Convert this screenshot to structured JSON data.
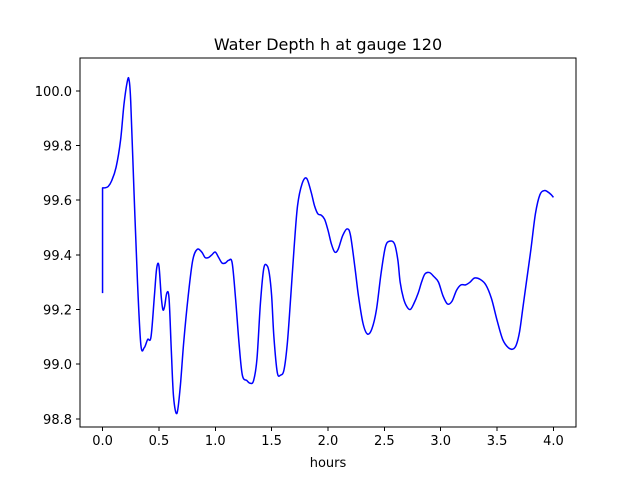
{
  "chart_data": {
    "type": "line",
    "title": "Water Depth h at gauge 120",
    "xlabel": "hours",
    "ylabel": "",
    "xlim": [
      -0.2,
      4.2
    ],
    "ylim": [
      98.77,
      100.12
    ],
    "xticks": [
      0.0,
      0.5,
      1.0,
      1.5,
      2.0,
      2.5,
      3.0,
      3.5,
      4.0
    ],
    "xtick_labels": [
      "0.0",
      "0.5",
      "1.0",
      "1.5",
      "2.0",
      "2.5",
      "3.0",
      "3.5",
      "4.0"
    ],
    "yticks": [
      98.8,
      99.0,
      99.2,
      99.4,
      99.6,
      99.8,
      100.0
    ],
    "ytick_labels": [
      "98.8",
      "99.0",
      "99.2",
      "99.4",
      "99.6",
      "99.8",
      "100.0"
    ],
    "grid": false,
    "series": [
      {
        "name": "",
        "color": "#0000ff",
        "x": [
          0.0,
          0.0,
          0.02,
          0.05,
          0.08,
          0.12,
          0.16,
          0.19,
          0.22,
          0.235,
          0.25,
          0.28,
          0.31,
          0.34,
          0.37,
          0.4,
          0.43,
          0.46,
          0.48,
          0.5,
          0.52,
          0.535,
          0.55,
          0.57,
          0.59,
          0.61,
          0.63,
          0.66,
          0.69,
          0.72,
          0.76,
          0.8,
          0.84,
          0.88,
          0.91,
          0.94,
          0.97,
          1.0,
          1.03,
          1.06,
          1.09,
          1.12,
          1.15,
          1.18,
          1.21,
          1.24,
          1.28,
          1.31,
          1.34,
          1.37,
          1.4,
          1.43,
          1.46,
          1.48,
          1.5,
          1.52,
          1.55,
          1.58,
          1.61,
          1.64,
          1.67,
          1.7,
          1.73,
          1.77,
          1.81,
          1.85,
          1.88,
          1.91,
          1.94,
          1.97,
          2.0,
          2.03,
          2.06,
          2.09,
          2.13,
          2.17,
          2.2,
          2.24,
          2.27,
          2.31,
          2.35,
          2.39,
          2.43,
          2.47,
          2.51,
          2.55,
          2.59,
          2.62,
          2.64,
          2.67,
          2.7,
          2.73,
          2.76,
          2.8,
          2.83,
          2.86,
          2.9,
          2.94,
          2.98,
          3.02,
          3.06,
          3.1,
          3.14,
          3.18,
          3.22,
          3.26,
          3.3,
          3.35,
          3.4,
          3.45,
          3.5,
          3.55,
          3.6,
          3.64,
          3.67,
          3.7,
          3.73,
          3.76,
          3.8,
          3.84,
          3.88,
          3.92,
          3.95,
          3.98,
          4.0
        ],
        "y": [
          99.26,
          99.645,
          99.645,
          99.65,
          99.67,
          99.72,
          99.82,
          99.95,
          100.035,
          100.04,
          99.96,
          99.62,
          99.3,
          99.07,
          99.06,
          99.09,
          99.1,
          99.25,
          99.35,
          99.36,
          99.25,
          99.2,
          99.21,
          99.26,
          99.24,
          99.05,
          98.88,
          98.82,
          98.92,
          99.08,
          99.25,
          99.38,
          99.42,
          99.41,
          99.39,
          99.39,
          99.4,
          99.41,
          99.39,
          99.37,
          99.37,
          99.38,
          99.37,
          99.24,
          99.08,
          98.96,
          98.94,
          98.93,
          98.94,
          99.02,
          99.22,
          99.35,
          99.36,
          99.33,
          99.25,
          99.1,
          98.97,
          98.96,
          98.98,
          99.08,
          99.25,
          99.43,
          99.58,
          99.66,
          99.68,
          99.63,
          99.58,
          99.55,
          99.545,
          99.53,
          99.49,
          99.44,
          99.41,
          99.42,
          99.47,
          99.495,
          99.47,
          99.35,
          99.25,
          99.15,
          99.11,
          99.13,
          99.2,
          99.33,
          99.43,
          99.45,
          99.44,
          99.38,
          99.3,
          99.24,
          99.21,
          99.2,
          99.22,
          99.26,
          99.3,
          99.33,
          99.335,
          99.32,
          99.3,
          99.25,
          99.22,
          99.23,
          99.27,
          99.29,
          99.29,
          99.3,
          99.315,
          99.31,
          99.29,
          99.24,
          99.16,
          99.09,
          99.06,
          99.055,
          99.07,
          99.12,
          99.21,
          99.3,
          99.42,
          99.55,
          99.62,
          99.635,
          99.63,
          99.62,
          99.61
        ]
      }
    ]
  }
}
